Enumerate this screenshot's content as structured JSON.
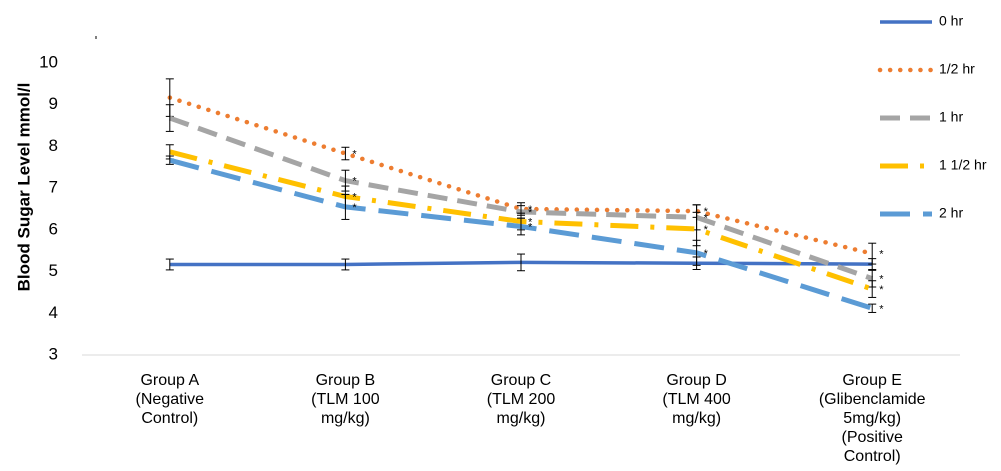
{
  "chart_data": {
    "type": "line",
    "ylabel": "Blood Sugar Level mmol/l",
    "xlabel": "",
    "ylim": [
      3,
      10
    ],
    "yticks": [
      "3",
      "4",
      "5",
      "6",
      "7",
      "8",
      "9",
      "10"
    ],
    "grid": false,
    "legend_position": "right",
    "categories": [
      [
        "Group A",
        "(Negative",
        "Control)"
      ],
      [
        "Group B",
        "(TLM 100",
        "mg/kg)"
      ],
      [
        "Group C",
        "(TLM 200",
        "mg/kg)"
      ],
      [
        "Group D",
        "(TLM 400",
        "mg/kg)"
      ],
      [
        "Group E",
        "(Glibenclamide",
        "5mg/kg)",
        "(Positive",
        "Control)"
      ]
    ],
    "series": [
      {
        "name": "0 hr",
        "values": [
          5.17,
          5.17,
          5.22,
          5.2,
          5.18
        ],
        "errors": [
          0.13,
          0.13,
          0.2,
          0.15,
          0.13
        ],
        "color": "#4472C4",
        "style": "solid"
      },
      {
        "name": "1/2 hr",
        "values": [
          9.17,
          7.83,
          6.5,
          6.45,
          5.43
        ],
        "errors": [
          0.45,
          0.15,
          0.15,
          0.15,
          0.25
        ],
        "color": "#ED7D31",
        "style": "dotted"
      },
      {
        "name": "1 hr",
        "values": [
          8.68,
          7.18,
          6.43,
          6.3,
          4.83
        ],
        "errors": [
          0.32,
          0.25,
          0.15,
          0.3,
          0.2
        ],
        "color": "#A5A5A5",
        "style": "dashed"
      },
      {
        "name": "1 1/2 hr",
        "values": [
          7.87,
          6.8,
          6.2,
          6.02,
          4.58
        ],
        "errors": [
          0.17,
          0.25,
          0.2,
          0.4,
          0.2
        ],
        "color": "#FFC000",
        "style": "longdash-dot"
      },
      {
        "name": "2 hr",
        "values": [
          7.67,
          6.55,
          6.08,
          5.45,
          4.12
        ],
        "errors": [
          0.1,
          0.3,
          0.2,
          0.3,
          0.1
        ],
        "color": "#5B9BD5",
        "style": "longdash"
      }
    ],
    "significance_markers": [
      {
        "category": 1,
        "series": [
          1,
          2,
          3,
          4
        ],
        "symbol": "*"
      },
      {
        "category": 2,
        "series": [
          1,
          2,
          3,
          4
        ],
        "symbol": "*"
      },
      {
        "category": 3,
        "series": [
          1,
          2,
          3,
          4
        ],
        "symbol": "*"
      },
      {
        "category": 4,
        "series": [
          1,
          2,
          3,
          4
        ],
        "symbol": "*"
      }
    ]
  }
}
